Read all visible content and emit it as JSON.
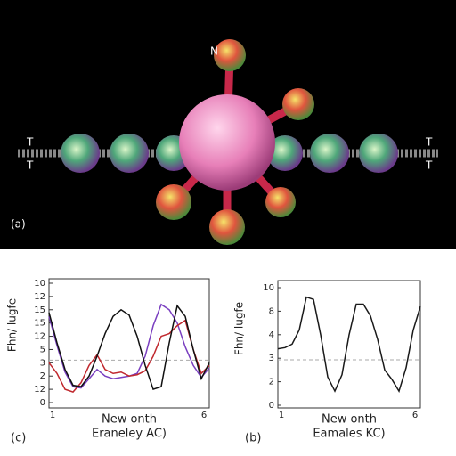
{
  "illustration": {
    "labels": [
      "N",
      "T",
      "T",
      "T",
      "T"
    ]
  },
  "panels": [
    "(a)",
    "(c)",
    "(b)"
  ],
  "chart_data": [
    {
      "type": "line",
      "ylabel": "Fhn/ lugfe",
      "xlabel": [
        "New onth",
        "Eraneley AC)"
      ],
      "x": [
        1,
        1.25,
        1.5,
        1.75,
        2,
        2.25,
        2.5,
        2.75,
        3,
        3.25,
        3.5,
        3.75,
        4,
        4.25,
        4.5,
        4.75,
        5,
        5.25,
        5.5,
        5.75,
        6
      ],
      "xlim": [
        1,
        6
      ],
      "xticks": [
        1,
        6
      ],
      "ylim": [
        0,
        9
      ],
      "yticks": [
        0,
        {
          "value": 1,
          "label": "12"
        },
        {
          "value": 2,
          "label": "2"
        },
        {
          "value": 3,
          "label": "3"
        },
        {
          "value": 4,
          "label": "5"
        },
        {
          "value": 5,
          "label": "12"
        },
        {
          "value": 6,
          "label": "15"
        },
        {
          "value": 7,
          "label": "15"
        },
        {
          "value": 8,
          "label": "12"
        },
        {
          "value": 9,
          "label": "10"
        }
      ],
      "hline": 3.2,
      "series": [
        {
          "color": "#7a3fc0",
          "values": [
            6.5,
            4.3,
            2.3,
            1.2,
            1.1,
            1.8,
            2.5,
            2.0,
            1.8,
            1.9,
            2.0,
            2.2,
            3.5,
            5.8,
            7.4,
            7.0,
            6.0,
            4.2,
            2.8,
            1.9,
            2.6
          ]
        },
        {
          "color": "#c0282e",
          "values": [
            3.0,
            2.2,
            1.0,
            0.8,
            1.5,
            2.8,
            3.6,
            2.5,
            2.2,
            2.3,
            2.0,
            2.1,
            2.4,
            3.5,
            5.0,
            5.2,
            5.8,
            6.2,
            4.0,
            2.2,
            2.8
          ]
        },
        {
          "color": "#111111",
          "values": [
            6.8,
            4.5,
            2.5,
            1.3,
            1.2,
            2.0,
            3.5,
            5.2,
            6.5,
            7.0,
            6.6,
            5.0,
            2.8,
            1.0,
            1.2,
            4.5,
            7.3,
            6.5,
            4.0,
            1.8,
            3.0
          ]
        }
      ]
    },
    {
      "type": "line",
      "ylabel": "Fhn/ lugfe",
      "xlabel": [
        "New onth",
        "Eamales KC)"
      ],
      "x": [
        1,
        1.25,
        1.5,
        1.75,
        2,
        2.25,
        2.5,
        2.75,
        3,
        3.25,
        3.5,
        3.75,
        4,
        4.25,
        4.5,
        4.75,
        5,
        5.25,
        5.5,
        5.75,
        6
      ],
      "xlim": [
        1,
        6
      ],
      "xticks": [
        1,
        6
      ],
      "ylim": [
        0,
        5
      ],
      "yticks": [
        0,
        {
          "value": 1,
          "label": "2"
        },
        {
          "value": 2,
          "label": "3"
        },
        {
          "value": 3,
          "label": "4"
        },
        {
          "value": 4,
          "label": "8"
        },
        {
          "value": 5,
          "label": "10"
        }
      ],
      "hline": 1.93,
      "series": [
        {
          "color": "#1a1a1a",
          "values": [
            2.4,
            2.45,
            2.6,
            3.2,
            4.6,
            4.5,
            3.0,
            1.2,
            0.6,
            1.3,
            3.0,
            4.3,
            4.3,
            3.8,
            2.8,
            1.5,
            1.1,
            0.6,
            1.6,
            3.2,
            4.2
          ]
        }
      ]
    }
  ]
}
